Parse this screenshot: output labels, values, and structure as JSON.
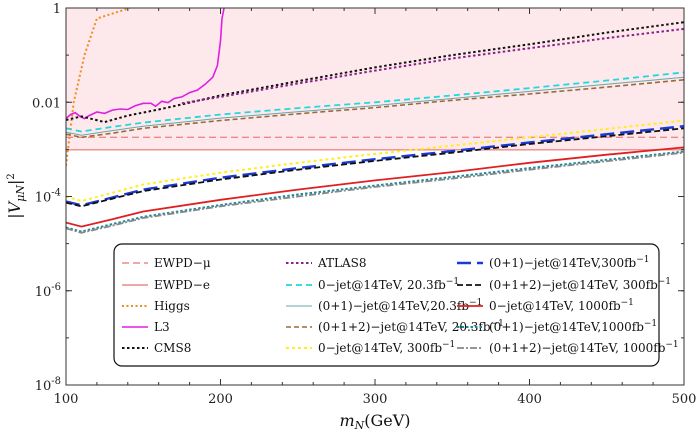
{
  "chart_data": {
    "type": "line",
    "title": "",
    "xlabel": "m_N(GeV)",
    "ylabel": "|V_μN|^2",
    "xlim": [
      100,
      500
    ],
    "ylim": [
      1e-08,
      1
    ],
    "yscale": "log",
    "x_ticks": [
      "100",
      "200",
      "300",
      "400",
      "500"
    ],
    "y_ticks": [
      {
        "value": 1,
        "label": "1"
      },
      {
        "value": 0.01,
        "label": "0.01"
      },
      {
        "value": 0.0001,
        "label": "10^-4"
      },
      {
        "value": 1e-06,
        "label": "10^-6"
      },
      {
        "value": 1e-08,
        "label": "10^-8"
      }
    ],
    "grid": false,
    "legend_position": "bottom-center",
    "excluded_region": {
      "from_y": 0.001,
      "to_y": 1,
      "color": "#fde8ec"
    },
    "series": [
      {
        "name": "EWPD−μ",
        "color": "#ee8888",
        "dash": "7,4",
        "width": 1.4,
        "points": [
          [
            100,
            0.0018
          ],
          [
            500,
            0.0018
          ]
        ]
      },
      {
        "name": "EWPD−e",
        "color": "#ee8888",
        "dash": "",
        "width": 1.4,
        "points": [
          [
            100,
            0.00098
          ],
          [
            500,
            0.00098
          ]
        ]
      },
      {
        "name": "Higgs",
        "color": "#f08c1c",
        "dash": "2,2.5",
        "width": 2,
        "points": [
          [
            100,
            0.00045
          ],
          [
            105,
            0.01
          ],
          [
            112,
            0.1
          ],
          [
            120,
            0.6
          ],
          [
            137,
            0.9
          ],
          [
            150,
            1.3
          ]
        ]
      },
      {
        "name": "L3",
        "color": "#e020e0",
        "dash": "",
        "width": 1.6,
        "points": [
          [
            100,
            0.0045
          ],
          [
            103,
            0.0055
          ],
          [
            106,
            0.006
          ],
          [
            109,
            0.005
          ],
          [
            112,
            0.0045
          ],
          [
            115,
            0.0052
          ],
          [
            120,
            0.0062
          ],
          [
            125,
            0.0058
          ],
          [
            130,
            0.0068
          ],
          [
            135,
            0.0072
          ],
          [
            140,
            0.007
          ],
          [
            145,
            0.0085
          ],
          [
            150,
            0.0095
          ],
          [
            155,
            0.0095
          ],
          [
            158,
            0.0082
          ],
          [
            162,
            0.0105
          ],
          [
            166,
            0.0098
          ],
          [
            170,
            0.012
          ],
          [
            175,
            0.013
          ],
          [
            180,
            0.016
          ],
          [
            185,
            0.018
          ],
          [
            190,
            0.024
          ],
          [
            195,
            0.034
          ],
          [
            198,
            0.06
          ],
          [
            200,
            0.2
          ],
          [
            201,
            0.6
          ],
          [
            203,
            1.3
          ]
        ]
      },
      {
        "name": "CMS8",
        "color": "#111111",
        "dash": "2.5,2.5",
        "width": 2,
        "points": [
          [
            100,
            0.0042
          ],
          [
            110,
            0.005
          ],
          [
            125,
            0.0038
          ],
          [
            140,
            0.0052
          ],
          [
            160,
            0.007
          ],
          [
            175,
            0.009
          ],
          [
            200,
            0.014
          ],
          [
            250,
            0.028
          ],
          [
            300,
            0.055
          ],
          [
            350,
            0.1
          ],
          [
            400,
            0.17
          ],
          [
            450,
            0.3
          ],
          [
            500,
            0.5
          ]
        ]
      },
      {
        "name": "ATLAS8",
        "color": "#882288",
        "dash": "2.5,2.5",
        "width": 2,
        "points": [
          [
            175,
            0.0095
          ],
          [
            200,
            0.013
          ],
          [
            250,
            0.025
          ],
          [
            300,
            0.047
          ],
          [
            350,
            0.085
          ],
          [
            400,
            0.14
          ],
          [
            450,
            0.23
          ],
          [
            500,
            0.36
          ]
        ]
      },
      {
        "name": "0−jet@14TeV, 20.3fb^−1",
        "color": "#22d8d8",
        "dash": "6,4",
        "width": 1.8,
        "points": [
          [
            100,
            0.0028
          ],
          [
            110,
            0.0024
          ],
          [
            130,
            0.003
          ],
          [
            150,
            0.0037
          ],
          [
            200,
            0.0055
          ],
          [
            250,
            0.0075
          ],
          [
            300,
            0.01
          ],
          [
            350,
            0.014
          ],
          [
            400,
            0.02
          ],
          [
            450,
            0.029
          ],
          [
            500,
            0.043
          ]
        ]
      },
      {
        "name": "(0+1)−jet@14TeV,20.3fb^−1",
        "color": "#66a8a8",
        "dash": "",
        "width": 1,
        "points": [
          [
            100,
            0.0023
          ],
          [
            110,
            0.002
          ],
          [
            130,
            0.0025
          ],
          [
            150,
            0.0031
          ],
          [
            200,
            0.0046
          ],
          [
            250,
            0.0063
          ],
          [
            300,
            0.0085
          ],
          [
            350,
            0.012
          ],
          [
            400,
            0.017
          ],
          [
            450,
            0.024
          ],
          [
            500,
            0.034
          ]
        ]
      },
      {
        "name": "(0+1+2)−jet@14TeV, 20.3fb^−1",
        "color": "#9a6a3a",
        "dash": "5,3",
        "width": 1.6,
        "points": [
          [
            100,
            0.0021
          ],
          [
            110,
            0.0018
          ],
          [
            130,
            0.0022
          ],
          [
            150,
            0.0028
          ],
          [
            200,
            0.0041
          ],
          [
            250,
            0.0057
          ],
          [
            300,
            0.0077
          ],
          [
            350,
            0.011
          ],
          [
            400,
            0.015
          ],
          [
            450,
            0.021
          ],
          [
            500,
            0.03
          ]
        ]
      },
      {
        "name": "0−jet@14TeV, 300fb^−1",
        "color": "#ffee22",
        "dash": "3,3",
        "width": 2,
        "points": [
          [
            100,
            0.0001
          ],
          [
            110,
            8e-05
          ],
          [
            130,
            0.00012
          ],
          [
            150,
            0.00018
          ],
          [
            200,
            0.00032
          ],
          [
            250,
            0.00052
          ],
          [
            300,
            0.0008
          ],
          [
            350,
            0.0012
          ],
          [
            400,
            0.0018
          ],
          [
            450,
            0.0027
          ],
          [
            500,
            0.0041
          ]
        ]
      },
      {
        "name": "(0+1)−jet@14TeV,300fb^−1",
        "color": "#1a3ad8",
        "dash": "14,6",
        "width": 2.4,
        "points": [
          [
            100,
            7.8e-05
          ],
          [
            110,
            6.5e-05
          ],
          [
            130,
            9.5e-05
          ],
          [
            150,
            0.00014
          ],
          [
            200,
            0.00025
          ],
          [
            250,
            0.0004
          ],
          [
            300,
            0.00062
          ],
          [
            350,
            0.00092
          ],
          [
            400,
            0.0014
          ],
          [
            450,
            0.0021
          ],
          [
            500,
            0.0031
          ]
        ]
      },
      {
        "name": "(0+1+2)−jet@14TeV, 300fb^−1",
        "color": "#111111",
        "dash": "6,3",
        "width": 1.8,
        "points": [
          [
            100,
            7.4e-05
          ],
          [
            110,
            6.2e-05
          ],
          [
            130,
            9e-05
          ],
          [
            150,
            0.00013
          ],
          [
            200,
            0.00023
          ],
          [
            250,
            0.00037
          ],
          [
            300,
            0.00057
          ],
          [
            350,
            0.00085
          ],
          [
            400,
            0.0013
          ],
          [
            450,
            0.0019
          ],
          [
            500,
            0.0028
          ]
        ]
      },
      {
        "name": "0−jet@14TeV, 1000fb^−1",
        "color": "#e02020",
        "dash": "",
        "width": 1.8,
        "points": [
          [
            100,
            2.8e-05
          ],
          [
            110,
            2.3e-05
          ],
          [
            130,
            3.3e-05
          ],
          [
            150,
            4.8e-05
          ],
          [
            200,
            8.5e-05
          ],
          [
            250,
            0.00014
          ],
          [
            300,
            0.00022
          ],
          [
            350,
            0.00033
          ],
          [
            400,
            0.00052
          ],
          [
            450,
            0.00077
          ],
          [
            500,
            0.0011
          ]
        ]
      },
      {
        "name": "(0+1)−jet@14TeV,1000fb^−1",
        "color": "#1a8a9a",
        "dash": "2.5,2",
        "width": 2,
        "points": [
          [
            100,
            2.2e-05
          ],
          [
            110,
            1.8e-05
          ],
          [
            130,
            2.6e-05
          ],
          [
            150,
            3.7e-05
          ],
          [
            200,
            6.6e-05
          ],
          [
            250,
            0.00011
          ],
          [
            300,
            0.00017
          ],
          [
            350,
            0.00026
          ],
          [
            400,
            0.0004
          ],
          [
            450,
            0.0006
          ],
          [
            500,
            0.0009
          ]
        ]
      },
      {
        "name": "(0+1+2)−jet@14TeV, 1000fb^−1",
        "color": "#888888",
        "dash": "7,2,2,2",
        "width": 1.8,
        "points": [
          [
            100,
            2.1e-05
          ],
          [
            110,
            1.7e-05
          ],
          [
            130,
            2.4e-05
          ],
          [
            150,
            3.5e-05
          ],
          [
            200,
            6.2e-05
          ],
          [
            250,
            0.0001
          ],
          [
            300,
            0.00016
          ],
          [
            350,
            0.00024
          ],
          [
            400,
            0.00037
          ],
          [
            450,
            0.00056
          ],
          [
            500,
            0.00085
          ]
        ]
      }
    ],
    "legend_columns": [
      [
        0,
        1,
        2,
        3,
        4
      ],
      [
        5,
        6,
        7,
        8,
        9
      ],
      [
        10,
        11,
        12,
        13,
        14
      ]
    ]
  }
}
